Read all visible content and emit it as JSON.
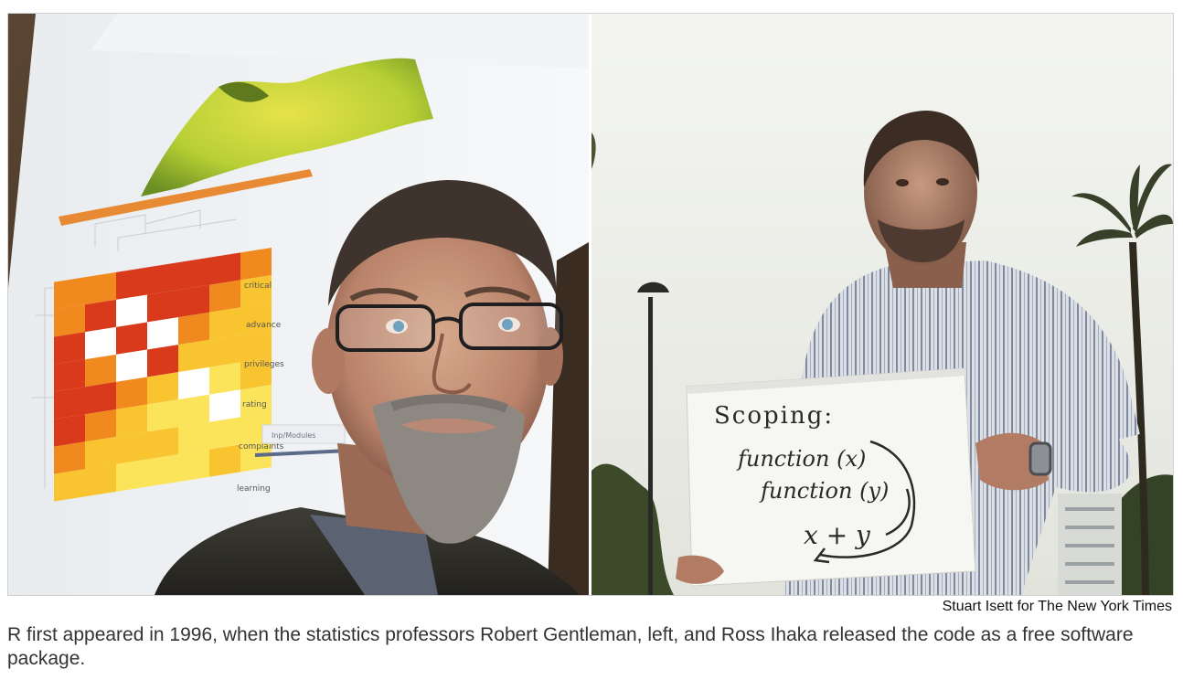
{
  "photo": {
    "left": {
      "subject": "left-portrait",
      "heatmap_labels": [
        "critical",
        "advance",
        "privileges",
        "rating",
        "complaints",
        "learning"
      ],
      "panel_label": "Inp/Modules"
    },
    "right": {
      "subject": "right-portrait",
      "sign_lines": [
        "Scoping:",
        "function (x)",
        "function (y)",
        "x + y"
      ]
    }
  },
  "credit": "Stuart Isett for The New York Times",
  "caption": "R first appeared in 1996, when the statistics professors Robert Gentleman, left, and Ross Ihaka released the code as a free software package.",
  "colors": {
    "heat_dark": "#d93a1c",
    "heat_mid": "#f08a1e",
    "heat_light": "#f8c531",
    "heat_pale": "#fbe45a",
    "surface": "#c8d93a",
    "sky": "#eef0ea"
  }
}
